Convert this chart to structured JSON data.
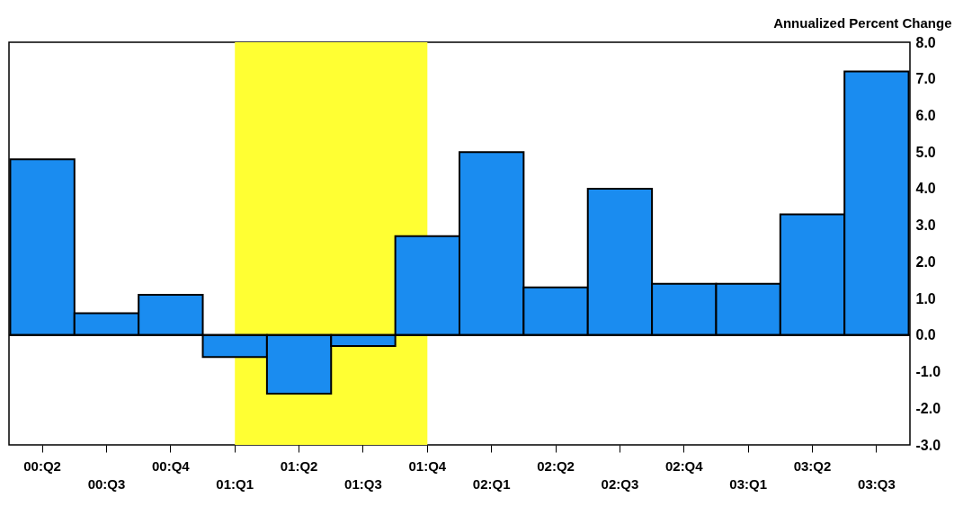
{
  "chart_data": {
    "type": "bar",
    "ylabel": "Annualized Percent Change",
    "categories": [
      "00:Q2",
      "00:Q3",
      "00:Q4",
      "01:Q1",
      "01:Q2",
      "01:Q3",
      "01:Q4",
      "02:Q1",
      "02:Q2",
      "02:Q3",
      "02:Q4",
      "03:Q1",
      "03:Q2",
      "03:Q3"
    ],
    "values": [
      4.8,
      0.6,
      1.1,
      -0.6,
      -1.6,
      -0.3,
      2.7,
      5.0,
      1.3,
      4.0,
      1.4,
      1.4,
      3.3,
      7.2
    ],
    "color": "#1a8cf0",
    "ylim": [
      -3,
      8
    ],
    "yticks": [
      {
        "value": -3,
        "label": "-3.0"
      },
      {
        "value": -2,
        "label": "-2.0"
      },
      {
        "value": -1,
        "label": "-1.0"
      },
      {
        "value": 0,
        "label": "0.0"
      },
      {
        "value": 1,
        "label": "1.0"
      },
      {
        "value": 2,
        "label": "2.0"
      },
      {
        "value": 3,
        "label": "3.0"
      },
      {
        "value": 4,
        "label": "4.0"
      },
      {
        "value": 5,
        "label": "5.0"
      },
      {
        "value": 6,
        "label": "6.0"
      },
      {
        "value": 7,
        "label": "7.0"
      },
      {
        "value": 8,
        "label": "8.0"
      }
    ],
    "bands": [
      {
        "axis": "x",
        "from": "01:Q1",
        "to": "01:Q4",
        "color": "#ffff33"
      }
    ],
    "ref_lines": [
      {
        "axis": "y",
        "value": 0,
        "color": "#000000"
      }
    ],
    "grid": false
  }
}
